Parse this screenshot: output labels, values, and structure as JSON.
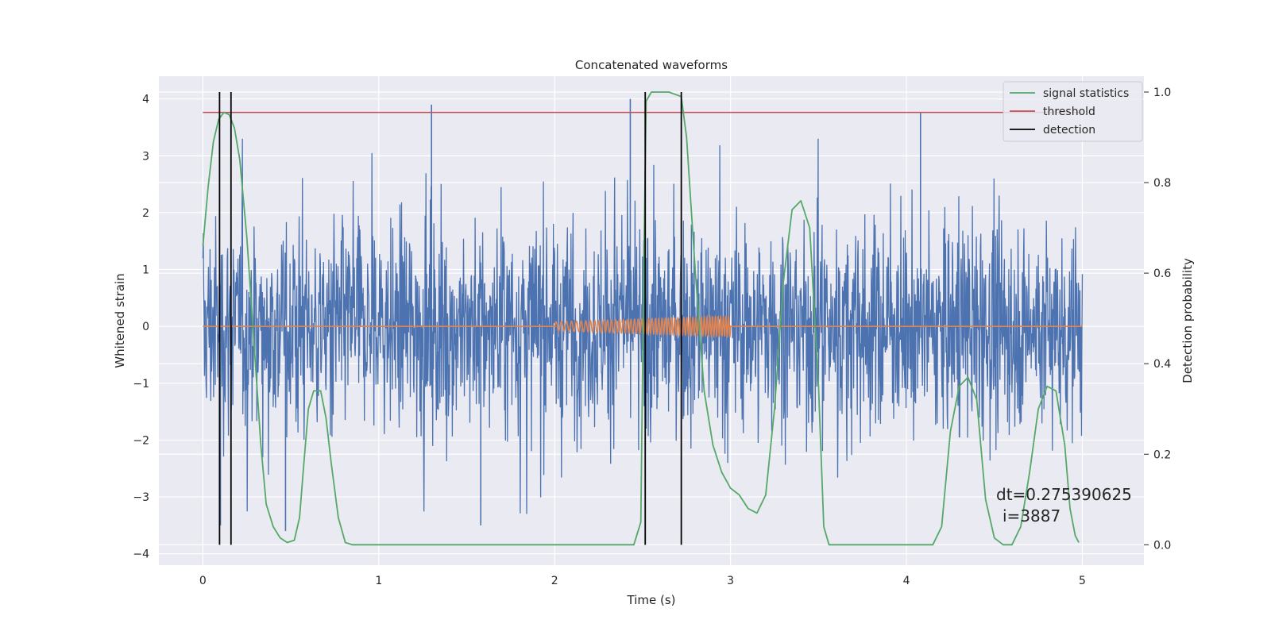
{
  "chart_data": {
    "type": "line",
    "title": "Concatenated waveforms",
    "xlabel": "Time (s)",
    "ylabel": "Whitened strain",
    "y2label": "Detection probability",
    "xlim": [
      -0.25,
      5.35
    ],
    "ylim": [
      -4.2,
      4.4
    ],
    "y2lim": [
      -0.045,
      1.035
    ],
    "x_ticks": [
      0,
      1,
      2,
      3,
      4,
      5
    ],
    "y_ticks": [
      -4,
      -3,
      -2,
      -1,
      0,
      1,
      2,
      3,
      4
    ],
    "y_tick_labels": [
      "−4",
      "−3",
      "−2",
      "−1",
      "0",
      "1",
      "2",
      "3",
      "4"
    ],
    "y2_ticks": [
      0.0,
      0.2,
      0.4,
      0.6,
      0.8,
      1.0
    ],
    "y2_tick_labels": [
      "0.0",
      "0.2",
      "0.4",
      "0.6",
      "0.8",
      "1.0"
    ],
    "grid": true,
    "legend_position": "top-right",
    "colors": {
      "strain": "#4c72b0",
      "template": "#dd8452",
      "signal": "#55a868",
      "threshold": "#c44e52",
      "detection": "#000000",
      "background": "#eaeaf2",
      "grid": "#ffffff"
    },
    "series": [
      {
        "name": "whitened strain",
        "x_range": [
          0,
          5
        ],
        "amplitude_envelope": 1.0,
        "peak_spikes": [
          {
            "x": 1.3,
            "y": 3.9
          },
          {
            "x": 2.43,
            "y": 4.0
          },
          {
            "x": 4.08,
            "y": 3.75
          },
          {
            "x": 0.1,
            "y": -3.5
          },
          {
            "x": 0.47,
            "y": -3.6
          },
          {
            "x": 1.58,
            "y": -3.5
          }
        ]
      },
      {
        "name": "template",
        "chirp_x_range": [
          2.0,
          3.0
        ],
        "chirp_amplitude": [
          0.08,
          0.18
        ],
        "baseline": 0
      },
      {
        "name": "signal statistics",
        "axis": "right",
        "x": [
          0.0,
          0.03,
          0.06,
          0.09,
          0.12,
          0.15,
          0.18,
          0.21,
          0.25,
          0.29,
          0.33,
          0.36,
          0.4,
          0.44,
          0.48,
          0.52,
          0.55,
          0.57,
          0.6,
          0.63,
          0.67,
          0.7,
          0.73,
          0.77,
          0.81,
          0.85,
          0.89,
          0.95,
          1.2,
          1.5,
          1.9,
          2.3,
          2.45,
          2.49,
          2.505,
          2.52,
          2.55,
          2.65,
          2.72,
          2.75,
          2.8,
          2.85,
          2.9,
          2.95,
          3.0,
          3.05,
          3.1,
          3.15,
          3.2,
          3.25,
          3.3,
          3.35,
          3.4,
          3.45,
          3.5,
          3.53,
          3.56,
          3.6,
          3.8,
          4.15,
          4.2,
          4.25,
          4.3,
          4.35,
          4.4,
          4.45,
          4.5,
          4.55,
          4.6,
          4.65,
          4.7,
          4.75,
          4.8,
          4.85,
          4.9,
          4.93,
          4.96,
          4.98
        ],
        "y": [
          0.66,
          0.79,
          0.89,
          0.94,
          0.955,
          0.95,
          0.92,
          0.85,
          0.68,
          0.45,
          0.22,
          0.09,
          0.04,
          0.015,
          0.005,
          0.01,
          0.06,
          0.16,
          0.3,
          0.34,
          0.34,
          0.28,
          0.18,
          0.06,
          0.005,
          0.0,
          0.0,
          0.0,
          0.0,
          0.0,
          0.0,
          0.0,
          0.0,
          0.05,
          0.55,
          0.98,
          1.0,
          1.0,
          0.99,
          0.9,
          0.6,
          0.34,
          0.22,
          0.16,
          0.125,
          0.11,
          0.08,
          0.07,
          0.11,
          0.3,
          0.58,
          0.74,
          0.76,
          0.7,
          0.35,
          0.04,
          0.0,
          0.0,
          0.0,
          0.0,
          0.04,
          0.25,
          0.35,
          0.37,
          0.32,
          0.1,
          0.015,
          0.0,
          0.0,
          0.04,
          0.16,
          0.3,
          0.35,
          0.34,
          0.22,
          0.08,
          0.02,
          0.005
        ]
      },
      {
        "name": "threshold",
        "axis": "right",
        "x": [
          0,
          5
        ],
        "y": [
          0.955,
          0.955
        ]
      },
      {
        "name": "detection",
        "axis": "right",
        "x_lines": [
          0.095,
          0.16,
          2.515,
          2.72
        ],
        "y_range": [
          0.0,
          1.0
        ]
      }
    ],
    "legend": [
      "signal statistics",
      "threshold",
      "detection"
    ],
    "annotations": [
      "dt=0.275390625",
      "i=3887"
    ]
  }
}
